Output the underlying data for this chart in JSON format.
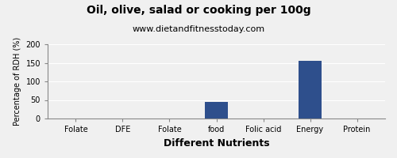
{
  "title": "Oil, olive, salad or cooking per 100g",
  "subtitle": "www.dietandfitnesstoday.com",
  "xlabel": "Different Nutrients",
  "ylabel": "Percentage of RDH (%)",
  "categories": [
    "Folate",
    "DFE",
    "Folate",
    "food",
    "Folic acid",
    "Energy",
    "Protein"
  ],
  "values": [
    0,
    0,
    0,
    45,
    0,
    155,
    0
  ],
  "bar_color": "#2e4f8c",
  "ylim": [
    0,
    200
  ],
  "yticks": [
    0,
    50,
    100,
    150,
    200
  ],
  "bg_color": "#f0f0f0",
  "plot_bg_color": "#f0f0f0",
  "title_fontsize": 10,
  "subtitle_fontsize": 8,
  "xlabel_fontsize": 9,
  "ylabel_fontsize": 7,
  "tick_fontsize": 7,
  "xlabel_bold": true
}
